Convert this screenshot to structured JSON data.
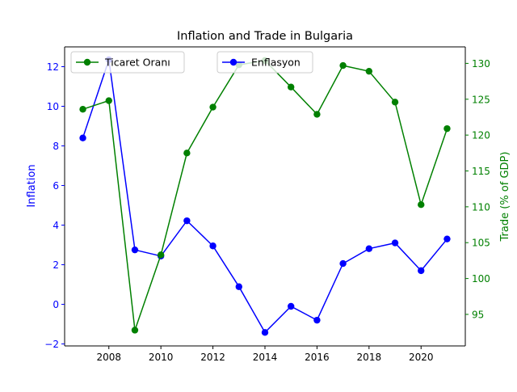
{
  "chart_data": {
    "type": "line",
    "title": "Inflation and Trade in Bulgaria",
    "x": [
      2007,
      2008,
      2009,
      2010,
      2011,
      2012,
      2013,
      2014,
      2015,
      2016,
      2017,
      2018,
      2019,
      2020,
      2021
    ],
    "xlim": [
      2006.3,
      2021.7
    ],
    "xticks": [
      2008,
      2010,
      2012,
      2014,
      2016,
      2018,
      2020
    ],
    "y_left": {
      "label": "Inflation",
      "lim": [
        -2.1,
        13.0
      ],
      "ticks": [
        -2,
        0,
        2,
        4,
        6,
        8,
        10,
        12
      ],
      "color": "#0000ff"
    },
    "y_right": {
      "label": "Trade (% of GDP)",
      "lim": [
        90.6,
        132.3
      ],
      "ticks": [
        95,
        100,
        105,
        110,
        115,
        120,
        125,
        130
      ],
      "color": "#008000"
    },
    "series": [
      {
        "name": "Enflasyon",
        "axis": "left",
        "color": "#0000ff",
        "values": [
          8.4,
          12.35,
          2.75,
          2.44,
          4.22,
          2.95,
          0.89,
          -1.42,
          -0.1,
          -0.8,
          2.06,
          2.81,
          3.1,
          1.7,
          3.3
        ]
      },
      {
        "name": "Ticaret Oranı",
        "axis": "right",
        "color": "#008000",
        "values": [
          123.6,
          124.8,
          92.8,
          103.3,
          117.5,
          123.9,
          129.8,
          130.4,
          126.7,
          122.9,
          129.7,
          128.9,
          124.6,
          110.3,
          120.9
        ]
      }
    ],
    "grid": false,
    "legend": [
      "top-left",
      "top-center"
    ]
  }
}
